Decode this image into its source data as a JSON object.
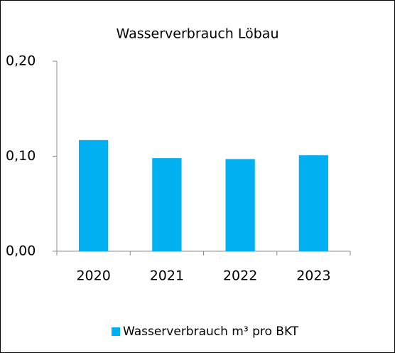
{
  "chart_data": {
    "type": "bar",
    "title": "Wasserverbrauch Löbau",
    "categories": [
      "2020",
      "2021",
      "2022",
      "2023"
    ],
    "series": [
      {
        "name": "Wasserverbrauch m³ pro BKT",
        "color": "#00b0f0",
        "values": [
          0.117,
          0.098,
          0.097,
          0.101
        ]
      }
    ],
    "ylim": [
      0,
      0.2
    ],
    "yticks": [
      {
        "value": 0,
        "label": "0,00"
      },
      {
        "value": 0.1,
        "label": "0,10"
      },
      {
        "value": 0.2,
        "label": "0,20"
      }
    ],
    "grid": false,
    "legend": "bottom"
  }
}
